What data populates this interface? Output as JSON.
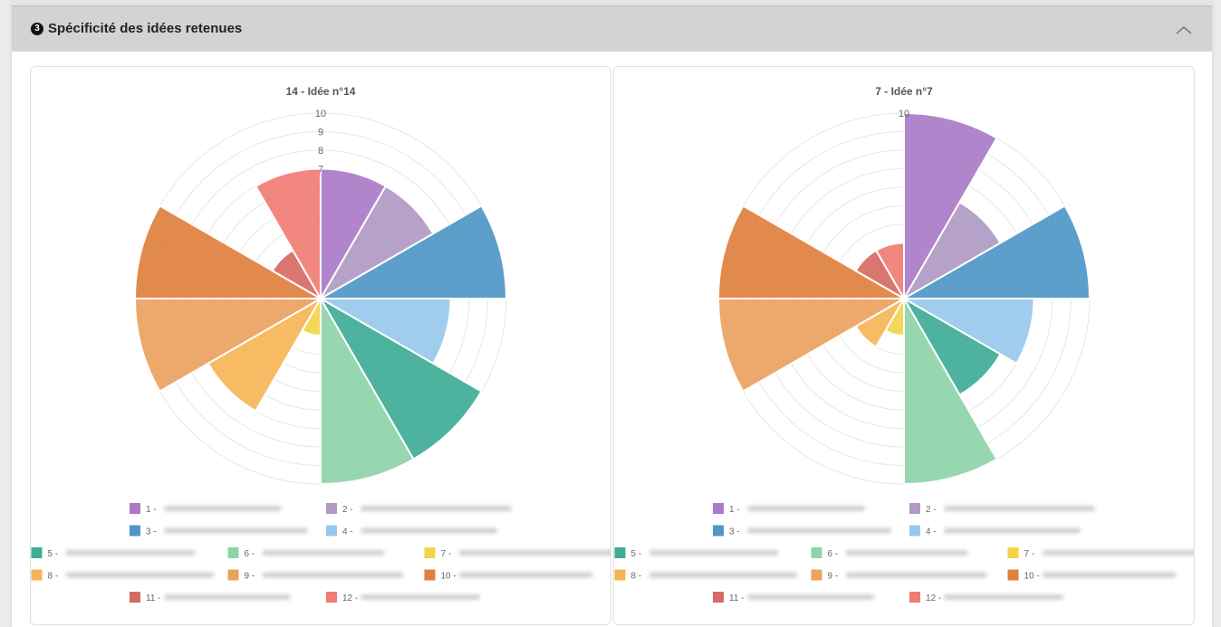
{
  "section": {
    "number": "3",
    "title": "Spécificité des idées retenues",
    "collapse_icon": "chevron-up-icon"
  },
  "chart_data": [
    {
      "type": "polarArea",
      "title": "14 - Idée n°14",
      "r_ticks": [
        "7",
        "8",
        "9",
        "10"
      ],
      "r_max": 10,
      "categories": [
        "1 -",
        "2 -",
        "3 -",
        "4 -",
        "5 -",
        "6 -",
        "7 -",
        "8 -",
        "9 -",
        "10 -",
        "11 -",
        "12 -"
      ],
      "values": [
        7,
        7,
        10,
        7,
        10,
        10,
        2,
        7,
        10,
        10,
        3,
        7
      ],
      "colors": [
        "#a97bc7",
        "#b09ac3",
        "#4e97c6",
        "#98c8ec",
        "#3fad96",
        "#8ed4a9",
        "#f3d34a",
        "#f5b556",
        "#eba160",
        "#e07f3e",
        "#d66a64",
        "#f07d74"
      ]
    },
    {
      "type": "polarArea",
      "title": "7 - Idée n°7",
      "r_ticks": [
        "10"
      ],
      "r_max": 10,
      "categories": [
        "1 -",
        "2 -",
        "3 -",
        "4 -",
        "5 -",
        "6 -",
        "7 -",
        "8 -",
        "9 -",
        "10 -",
        "11 -",
        "12 -"
      ],
      "values": [
        10,
        6,
        10,
        7,
        6,
        10,
        2,
        3,
        10,
        10,
        3,
        3
      ],
      "colors": [
        "#a97bc7",
        "#b09ac3",
        "#4e97c6",
        "#98c8ec",
        "#3fad96",
        "#8ed4a9",
        "#f3d34a",
        "#f5b556",
        "#eba160",
        "#e07f3e",
        "#d66a64",
        "#f07d74"
      ]
    }
  ]
}
